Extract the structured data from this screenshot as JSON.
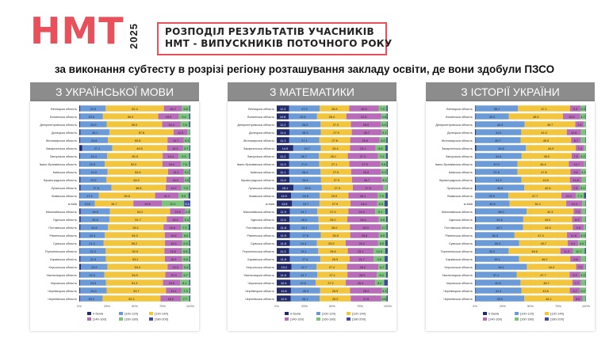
{
  "header": {
    "logo": "НМТ",
    "year": "2025",
    "title_line1": "РОЗПОДІЛ РЕЗУЛЬТАТІВ УЧАСНИКІВ",
    "title_line2": "НМТ - ВИПУСКНИКІВ ПОТОЧНОГО РОКУ",
    "subtitle": "за виконання субтесту в розрізі регіону розташування закладу освіти, де вони здобули ПЗСО"
  },
  "colors": {
    "red": "#e8505b",
    "panel_header": "#8c8c8c",
    "series": [
      "#232a6b",
      "#6a9bd8",
      "#f2c53d",
      "#b76bb8",
      "#7cc47c",
      "#3d4aa0"
    ]
  },
  "legend_labels": [
    "0 балів",
    "[100-120)",
    "[120-140)",
    "[140-160)",
    "[160-180)",
    "[180-200]"
  ],
  "axis_ticks": [
    "0%",
    "25%",
    "50%",
    "75%",
    "100%"
  ],
  "chart_data": [
    {
      "type": "bar",
      "title": "З УКРАЇНСЬКОЇ МОВИ",
      "categories": [
        "Вінницька область",
        "Волинська область",
        "Дніпропетровська область",
        "Донецька область",
        "Житомирська область",
        "Закарпатська область",
        "Запорізька область",
        "Івано-Франківська область",
        "Київська область",
        "Кіровоградська область",
        "Луганська область",
        "Львівська область",
        "м.Київ",
        "Миколаївська область",
        "Одеська область",
        "Полтавська область",
        "Рівненська область",
        "Сумська область",
        "Тернопільська область",
        "Харківська область",
        "Херсонська область",
        "Хмельницька область",
        "Черкаська область",
        "Чернівецька область",
        "Чернігівська область"
      ],
      "series": [
        {
          "name": "0 балів",
          "values": [
            0.9,
            0.6,
            0.8,
            1.0,
            0.9,
            2.5,
            0.8,
            0.5,
            0.6,
            1.0,
            1.2,
            0.4,
            0.4,
            1.1,
            1.3,
            1.0,
            0.7,
            1.0,
            0.5,
            1.0,
            1.4,
            0.6,
            0.8,
            0.9,
            0.8
          ]
        },
        {
          "name": "[100-120)",
          "values": [
            22.9,
            20.5,
            23.9,
            26.1,
            24.8,
            27.1,
            24.3,
            22.5,
            24.9,
            23.5,
            27.8,
            17.3,
            13.6,
            26.5,
            25.8,
            24.8,
            22.3,
            21.0,
            23.3,
            22.9,
            23.9,
            22.0,
            23.3,
            24.0,
            20.2
          ]
        },
        {
          "name": "[120-140)",
          "values": [
            52.4,
            50.0,
            50.0,
            57.8,
            53.8,
            49.5,
            50.0,
            52.0,
            54.5,
            54.0,
            48.8,
            50.6,
            34.7,
            54.2,
            51.7,
            50.1,
            54.0,
            55.2,
            52.9,
            53.2,
            54.2,
            54.9,
            51.3,
            53.7,
            52.2
          ]
        },
        {
          "name": "[140-160)",
          "values": [
            16.2,
            18.5,
            16.4,
            12.5,
            14.7,
            14.4,
            14.4,
            16.4,
            14.2,
            16.0,
            14.2,
            21.1,
            25.6,
            13.5,
            15.2,
            15.6,
            15.8,
            15.3,
            15.5,
            15.3,
            13.9,
            15.0,
            15.5,
            14.1,
            18.2
          ]
        },
        {
          "name": "[160-180)",
          "values": [
            6.8,
            9.4,
            7.8,
            2.4,
            5.3,
            5.7,
            9.5,
            7.6,
            5.2,
            4.6,
            7.5,
            9.0,
            20.1,
            4.3,
            5.4,
            7.1,
            6.5,
            6.5,
            6.8,
            6.9,
            5.6,
            6.7,
            8.1,
            7.3,
            7.7
          ]
        },
        {
          "name": "[180-200]",
          "values": [
            0.8,
            1.0,
            1.1,
            0.2,
            0.5,
            0.8,
            1.0,
            1.0,
            0.6,
            0.9,
            0.5,
            1.6,
            5.6,
            0.4,
            0.6,
            1.4,
            0.7,
            1.0,
            1.0,
            0.7,
            1.0,
            0.8,
            1.0,
            0.7,
            0.9
          ]
        }
      ]
    },
    {
      "type": "bar",
      "title": "З МАТЕМАТИКИ",
      "categories": [
        "Вінницька область",
        "Волинська область",
        "Дніпропетровська область",
        "Донецька область",
        "Житомирська область",
        "Закарпатська область",
        "Запорізька область",
        "Івано-Франківська область",
        "Київська область",
        "Кіровоградська область",
        "Луганська область",
        "Львівська область",
        "м.Київ",
        "Миколаївська область",
        "Одеська область",
        "Полтавська область",
        "Рівненська область",
        "Сумська область",
        "Тернопільська область",
        "Харківська область",
        "Херсонська область",
        "Хмельницька область",
        "Черкаська область",
        "Чернівецька область",
        "Чернігівська область"
      ],
      "series": [
        {
          "name": "0 балів",
          "values": [
            11.2,
            10.8,
            11.2,
            11.4,
            11.3,
            14.9,
            11.2,
            11.3,
            11.1,
            11.5,
            15.1,
            12.9,
            13.8,
            11.9,
            11.6,
            11.8,
            11.9,
            11.8,
            11.3,
            11.8,
            13.2,
            11.9,
            12.4,
            12.8,
            12.5
          ]
        },
        {
          "name": "[100-120)",
          "values": [
            27.5,
            25.5,
            28.3,
            28.3,
            27.1,
            24.7,
            26.7,
            27.0,
            28.4,
            28.4,
            25.5,
            25.8,
            24.7,
            24.7,
            26.0,
            26.1,
            27.8,
            24.4,
            26.1,
            27.4,
            22.7,
            24.7,
            22.6,
            26.3,
            26.1
          ]
        },
        {
          "name": "[120-140)",
          "values": [
            26.6,
            26.4,
            27.3,
            27.9,
            27.8,
            26.4,
            26.1,
            27.1,
            27.5,
            27.9,
            27.9,
            25.9,
            27.9,
            27.9,
            26.0,
            28.0,
            26.5,
            25.9,
            26.6,
            26.5,
            27.4,
            27.1,
            27.2,
            26.9,
            28.0
          ]
        },
        {
          "name": "[140-160)",
          "values": [
            26.5,
            31.5,
            26.9,
            26.7,
            26.5,
            23.1,
            27.2,
            27.9,
            26.8,
            26.7,
            27.5,
            26.1,
            24.2,
            24.2,
            28.4,
            28.3,
            25.6,
            29.2,
            23.1,
            21.7,
            28.2,
            26.5,
            26.4,
            28.9,
            27.6
          ]
        },
        {
          "name": "[160-180)",
          "values": [
            7.0,
            4.8,
            5.4,
            5.1,
            6.0,
            8.8,
            7.2,
            5.6,
            5.2,
            5.0,
            3.6,
            7.3,
            6.5,
            9.1,
            6.5,
            4.7,
            6.9,
            6.5,
            10.6,
            9.8,
            6.7,
            8.4,
            8.2,
            4.3,
            4.6
          ]
        },
        {
          "name": "[180-200]",
          "values": [
            1.2,
            1.0,
            0.9,
            0.6,
            1.3,
            2.1,
            1.6,
            1.1,
            1.0,
            0.5,
            0.4,
            2.0,
            2.9,
            2.2,
            1.5,
            1.1,
            1.3,
            2.2,
            2.3,
            2.8,
            1.8,
            1.4,
            3.2,
            0.8,
            1.2
          ]
        }
      ]
    },
    {
      "type": "bar",
      "title": "З ІСТОРІЇ УКРАЇНИ",
      "categories": [
        "Вінницька область",
        "Волинська область",
        "Дніпропетровська область",
        "Донецька область",
        "Житомирська область",
        "Закарпатська область",
        "Запорізька область",
        "Івано-Франківська область",
        "Київська область",
        "Кіровоградська область",
        "Луганська область",
        "Львівська область",
        "м.Київ",
        "Миколаївська область",
        "Одеська область",
        "Полтавська область",
        "Рівненська область",
        "Сумська область",
        "Тернопільська область",
        "Харківська область",
        "Херсонська область",
        "Хмельницька область",
        "Черкаська область",
        "Чернівецька область",
        "Чернігівська область"
      ],
      "series": [
        {
          "name": "0 балів",
          "values": [
            0.5,
            0.4,
            0.4,
            0.7,
            0.4,
            1.1,
            0.4,
            0.3,
            0.4,
            0.6,
            0.8,
            0.2,
            0.3,
            0.5,
            0.7,
            0.5,
            0.3,
            0.5,
            0.3,
            0.5,
            0.6,
            0.4,
            0.5,
            0.4,
            0.4
          ]
        },
        {
          "name": "[100-120)",
          "values": [
            38.1,
            30.0,
            44.3,
            41.0,
            40.7,
            44.8,
            41.6,
            37.9,
            37.8,
            41.3,
            43.5,
            29.9,
            30.8,
            46.0,
            42.8,
            42.7,
            35.3,
            39.3,
            30.0,
            39.1,
            46.1,
            37.1,
            40.5,
            41.4,
            43.9
          ]
        },
        {
          "name": "[120-140)",
          "values": [
            47.1,
            48.9,
            45.7,
            41.0,
            45.5,
            44.9,
            45.0,
            46.4,
            47.8,
            43.6,
            42.5,
            47.7,
            51.1,
            42.3,
            44.0,
            44.9,
            47.3,
            43.7,
            46.6,
            46.2,
            44.4,
            47.7,
            46.7,
            43.6,
            44.1
          ]
        },
        {
          "name": "[140-160)",
          "values": [
            9.3,
            15.5,
            7.5,
            12.8,
            8.7,
            7.3,
            7.5,
            13.7,
            9.6,
            10.8,
            7.5,
            13.0,
            14.4,
            7.2,
            8.9,
            9.8,
            11.8,
            9.4,
            11.3,
            9.8,
            7.2,
            9.5,
            7.7,
            9.2,
            8.6
          ]
        },
        {
          "name": "[160-180)",
          "values": [
            4.4,
            4.7,
            2.0,
            4.2,
            4.2,
            1.8,
            5.2,
            1.4,
            4.3,
            3.5,
            5.4,
            7.4,
            2.9,
            3.7,
            3.2,
            1.8,
            4.9,
            6.6,
            10.7,
            4.1,
            1.4,
            4.9,
            4.2,
            5.2,
            2.7
          ]
        },
        {
          "name": "[180-200]",
          "values": [
            0.6,
            0.5,
            0.1,
            0.3,
            0.5,
            0.1,
            0.3,
            0.3,
            0.1,
            0.2,
            0.3,
            1.8,
            0.5,
            0.3,
            0.4,
            0.3,
            0.4,
            0.5,
            1.1,
            0.3,
            0.3,
            0.4,
            0.4,
            0.2,
            0.3
          ]
        }
      ]
    }
  ]
}
